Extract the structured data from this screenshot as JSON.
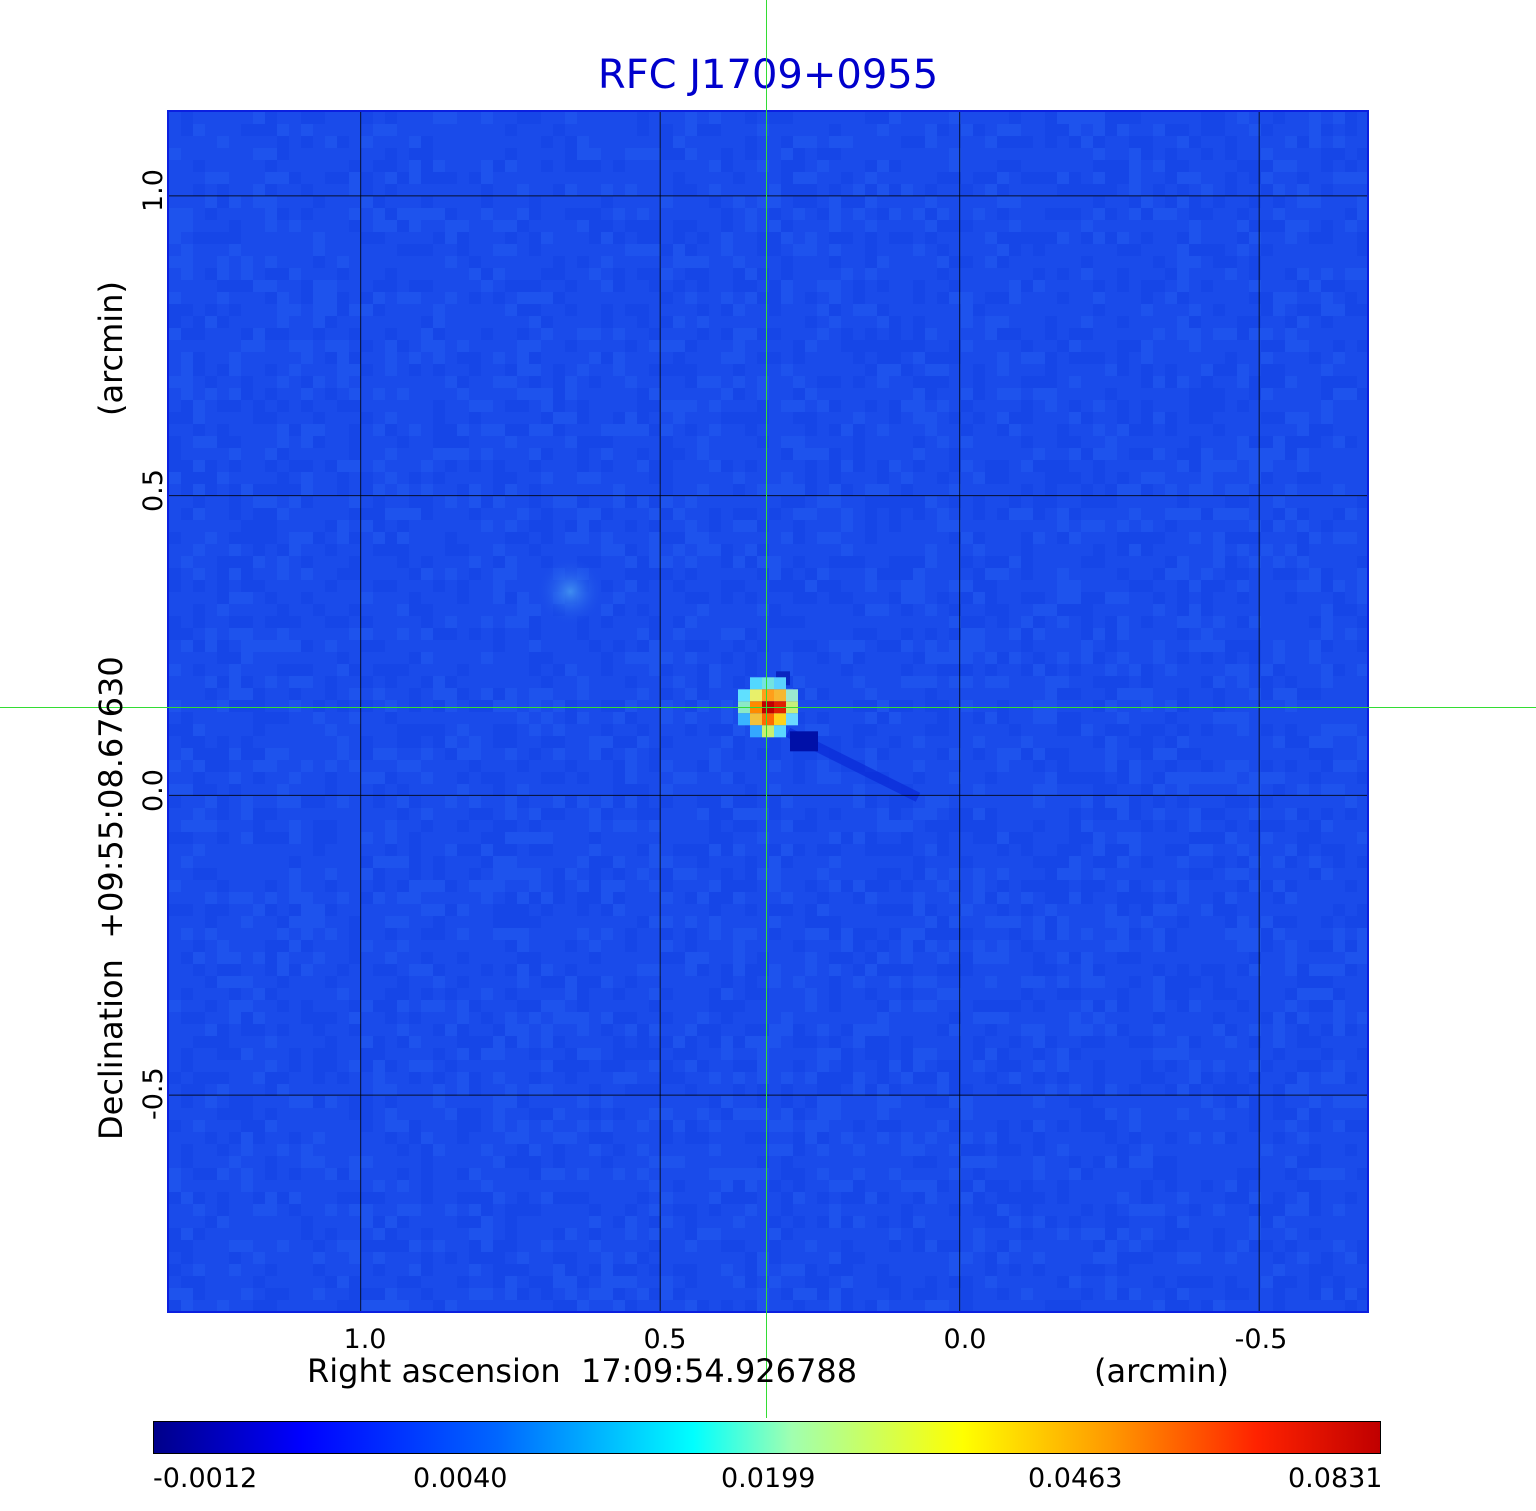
{
  "chart_data": {
    "type": "heatmap",
    "title": "RFC J1709+0955",
    "xlabel": "Right ascension  17:09:54.926788",
    "xunit": "(arcmin)",
    "ylabel": "Declination  +09:55:08.67630",
    "yunit": "(arcmin)",
    "xlim": [
      1.32,
      -0.68
    ],
    "ylim": [
      -0.86,
      1.14
    ],
    "x_ticks": [
      1.0,
      0.5,
      0.0,
      -0.5
    ],
    "x_tick_labels": [
      "1.0",
      "0.5",
      "0.0",
      "-0.5"
    ],
    "y_ticks": [
      1.0,
      0.5,
      0.0,
      -0.5
    ],
    "y_tick_labels": [
      "1.0",
      "0.5",
      "0.0",
      "-0.5"
    ],
    "grid": true,
    "colormap": "jet",
    "source": {
      "x": 0.32,
      "y": 0.147,
      "peak": 0.0831
    },
    "secondary_feature": {
      "x": 0.65,
      "y": 0.34
    },
    "crosshair": {
      "x": 0.32,
      "y": 0.147
    },
    "colorbar": {
      "tick_values": [
        -0.0012,
        0.004,
        0.0199,
        0.0463,
        0.0831
      ],
      "tick_labels": [
        "-0.0012",
        "0.0040",
        "0.0199",
        "0.0463",
        "0.0831"
      ]
    }
  },
  "colors": {
    "title": "#0000cc",
    "background_field": "#1a4bea",
    "grid": "#000000",
    "crosshair": "#33dd33"
  }
}
